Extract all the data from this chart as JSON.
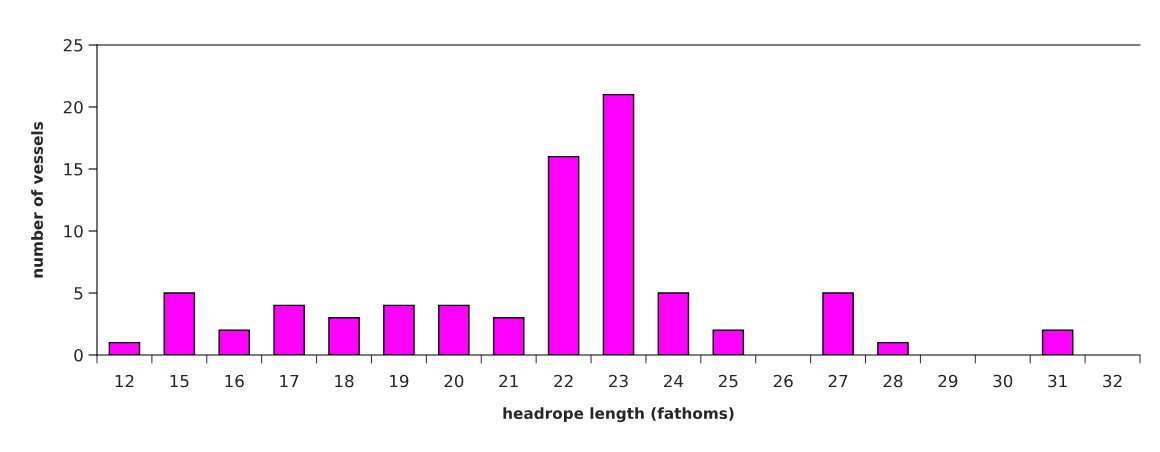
{
  "chart_data": {
    "type": "bar",
    "xlabel": "headrope length (fathoms)",
    "ylabel": "number of vessels",
    "categories": [
      "12",
      "15",
      "16",
      "17",
      "18",
      "19",
      "20",
      "21",
      "22",
      "23",
      "24",
      "25",
      "26",
      "27",
      "28",
      "29",
      "30",
      "31",
      "32"
    ],
    "values": [
      1,
      5,
      2,
      4,
      3,
      4,
      4,
      3,
      16,
      21,
      5,
      2,
      0,
      5,
      1,
      0,
      0,
      2,
      0
    ],
    "color": "#ff00ff",
    "ylim": [
      0,
      25
    ],
    "yticks": [
      0,
      5,
      10,
      15,
      20,
      25
    ],
    "grid": false,
    "legend": false
  }
}
